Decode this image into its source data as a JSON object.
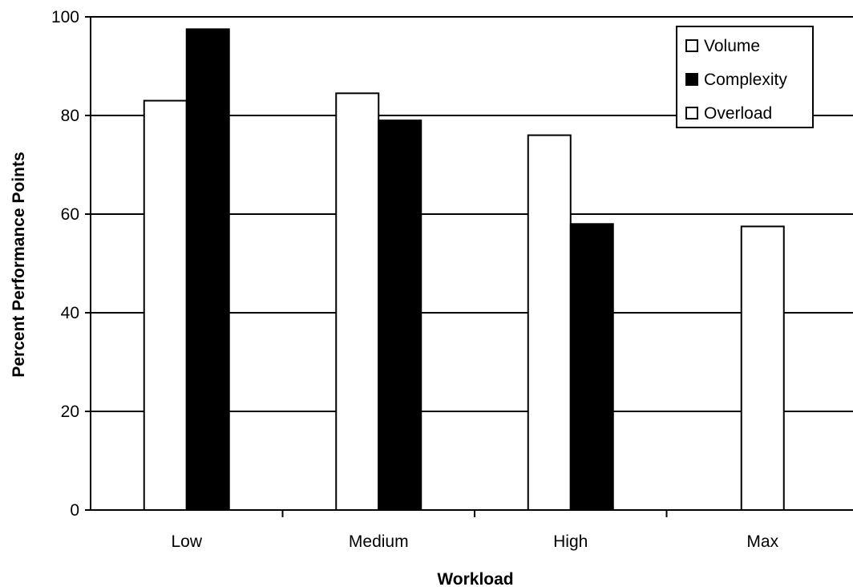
{
  "chart_data": {
    "type": "bar",
    "title": "",
    "xlabel": "Workload",
    "ylabel": "Percent Performance Points",
    "categories": [
      "Low",
      "Medium",
      "High",
      "Max"
    ],
    "ylim": [
      0,
      100
    ],
    "yticks": [
      "0",
      "20",
      "40",
      "60",
      "80",
      "100"
    ],
    "grid": true,
    "legend_position": "top-right",
    "series": [
      {
        "name": "Volume",
        "color": "#ffffff",
        "values": [
          83,
          84.5,
          76,
          null
        ]
      },
      {
        "name": "Complexity",
        "color": "#000000",
        "values": [
          97.5,
          79,
          58,
          null
        ]
      },
      {
        "name": "Overload",
        "color": "#ffffff",
        "values": [
          null,
          null,
          null,
          57.5
        ]
      }
    ]
  }
}
